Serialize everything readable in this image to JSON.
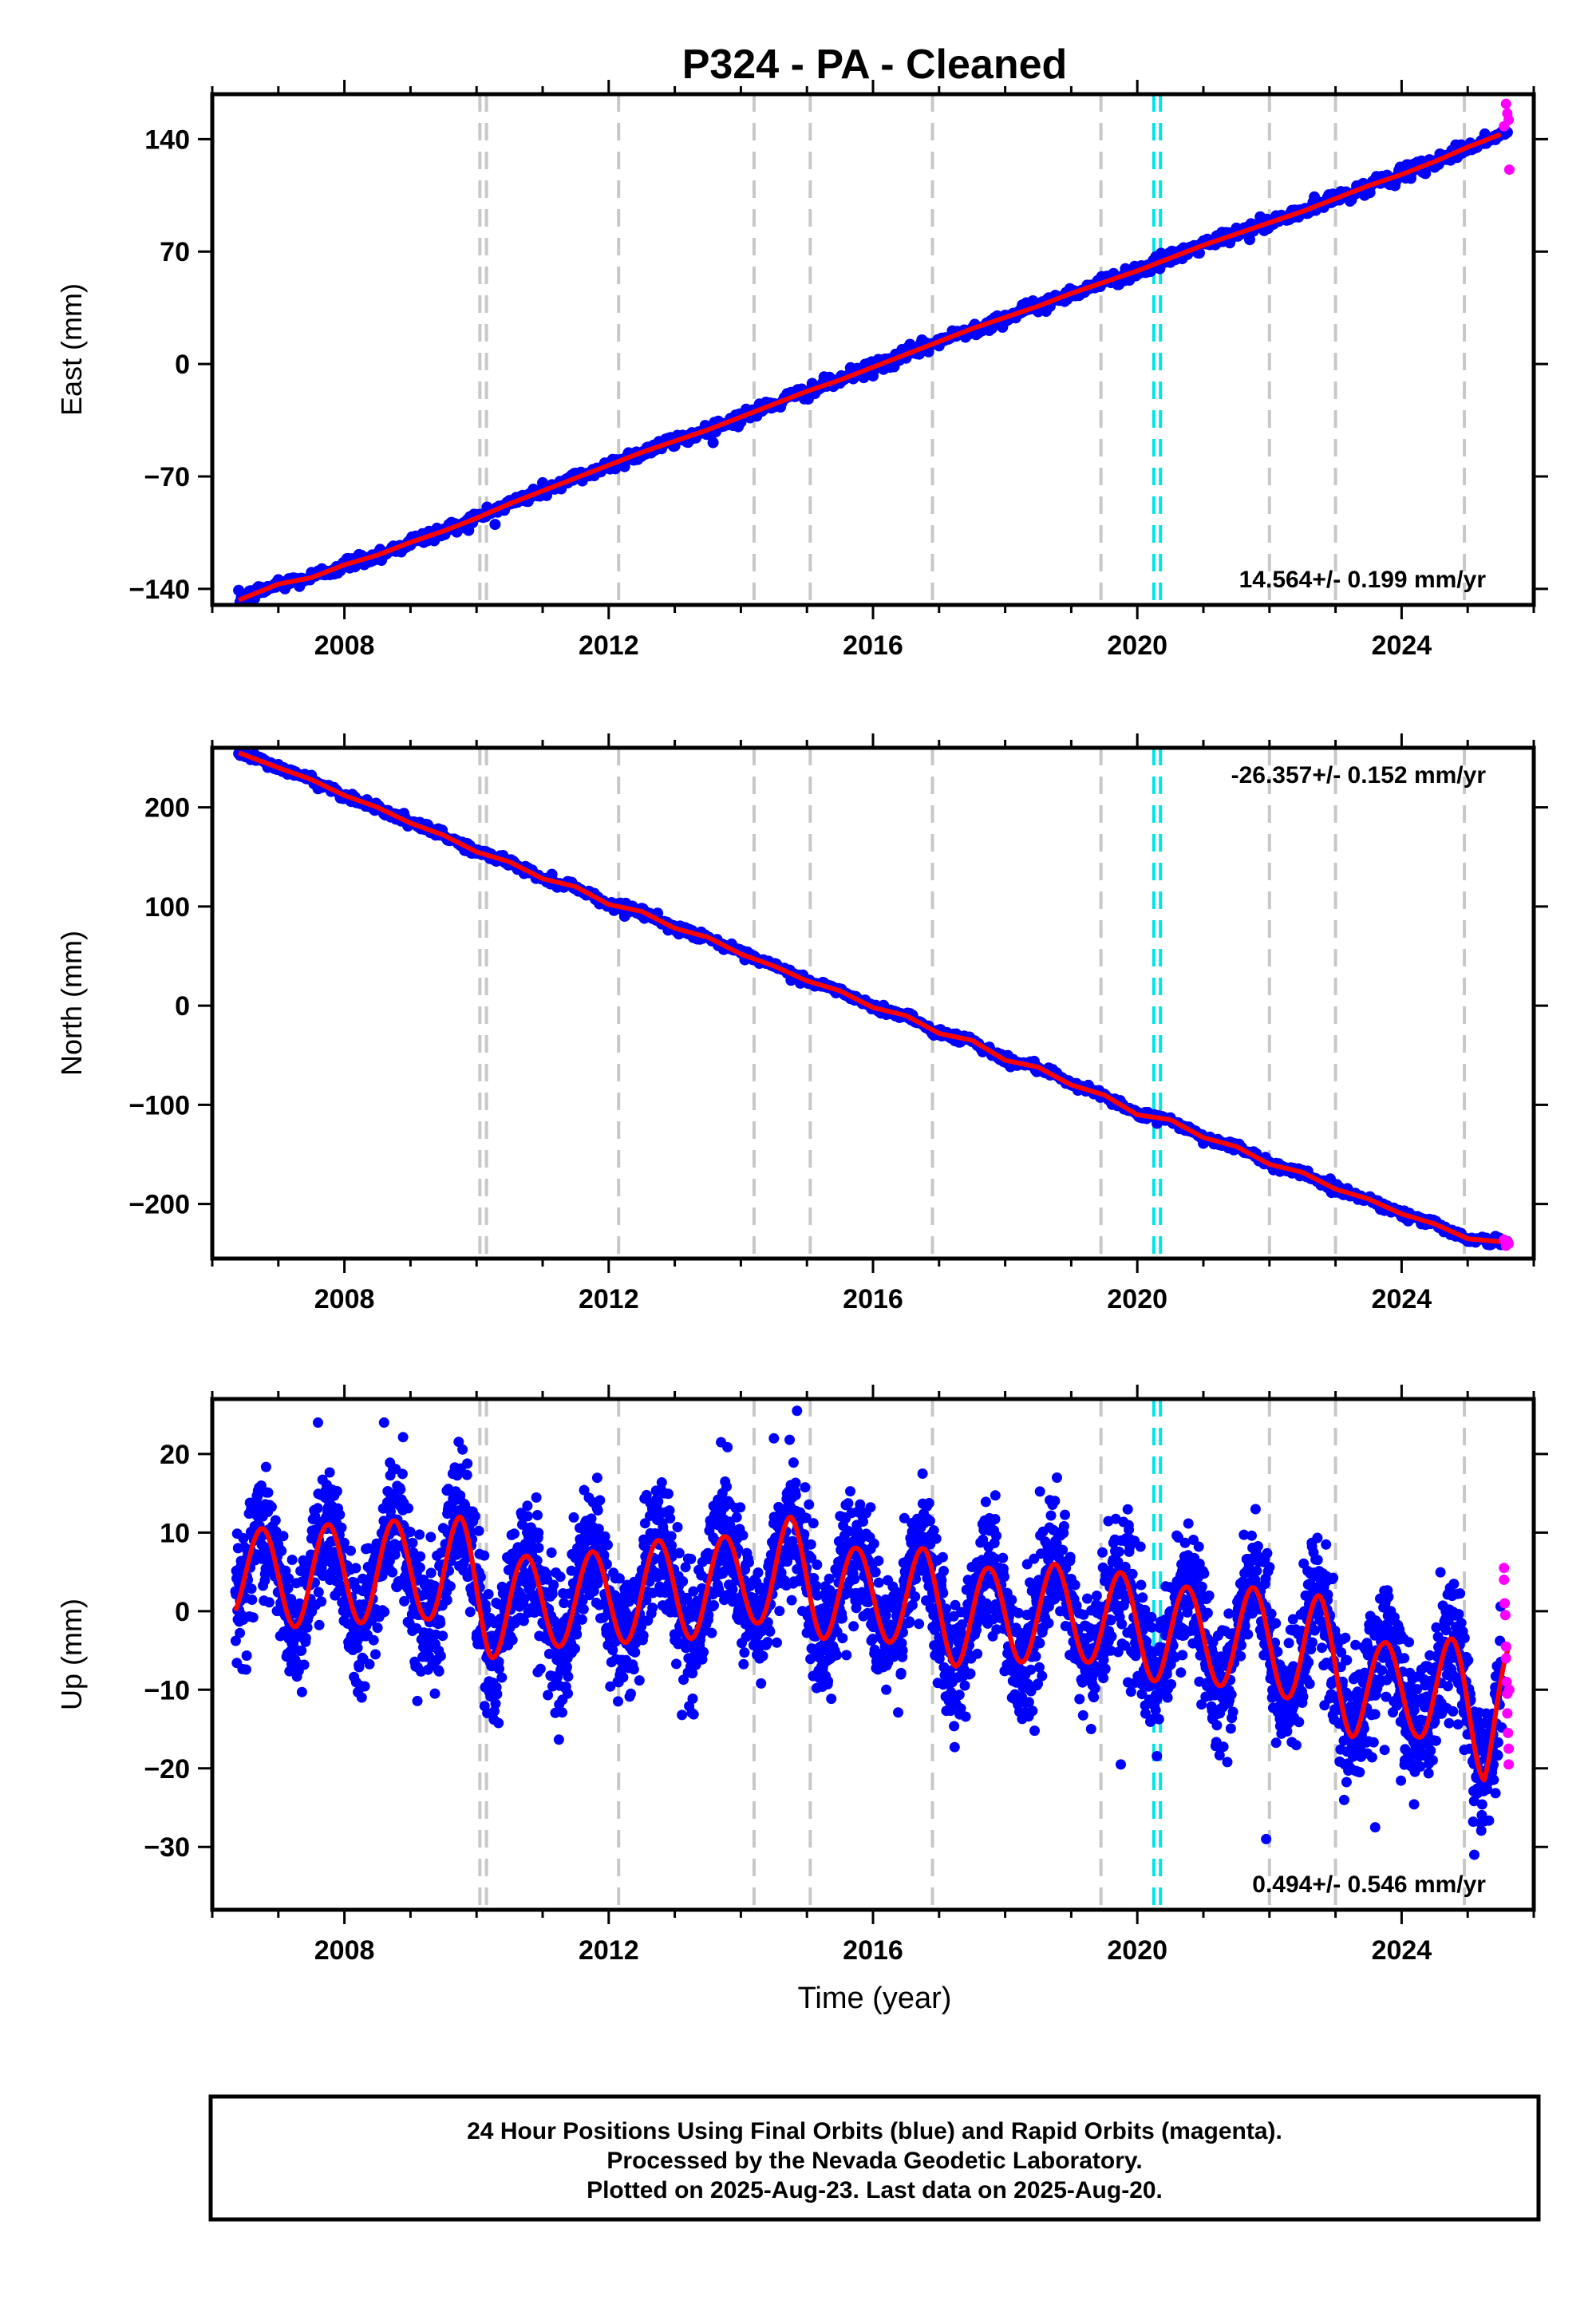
{
  "figure": {
    "title": "P324  - PA - Cleaned",
    "xlabel": "Time (year)",
    "footer": [
      "24 Hour Positions Using Final Orbits (blue) and Rapid Orbits (magenta).",
      "Processed by the Nevada Geodetic Laboratory.",
      "Plotted on 2025-Aug-23. Last data on 2025-Aug-20."
    ]
  },
  "colors": {
    "final": "#0000ff",
    "rapid": "#ff00ff",
    "model": "#ff0000",
    "event_line": "#c8c8c8",
    "antenna_change": "#00e5e5"
  },
  "chart_data": [
    {
      "type": "scatter",
      "ylabel": "East (mm)",
      "rate_label": "14.564+/- 0.199 mm/yr",
      "rate_position": "bottom-right",
      "xlim": [
        2006.0,
        2026.0
      ],
      "ylim": [
        -150,
        168
      ],
      "xticks": [
        2008,
        2012,
        2016,
        2020,
        2024
      ],
      "yticks": [
        -140,
        -70,
        0,
        70,
        140
      ],
      "ytick_labels": [
        "−140",
        "−70",
        "0",
        "70",
        "140"
      ],
      "series": [
        {
          "role": "final-daily",
          "x": [
            2006.4,
            2007.0,
            2007.5,
            2008.0,
            2008.5,
            2009.0,
            2009.5,
            2010.0,
            2010.5,
            2011.0,
            2011.5,
            2012.0,
            2012.5,
            2013.0,
            2013.5,
            2014.0,
            2014.5,
            2015.0,
            2015.5,
            2016.0,
            2016.5,
            2017.0,
            2017.5,
            2018.0,
            2018.5,
            2019.0,
            2019.5,
            2020.0,
            2020.5,
            2021.0,
            2021.5,
            2022.0,
            2022.5,
            2023.0,
            2023.5,
            2024.0,
            2024.5,
            2025.0,
            2025.5
          ],
          "y": [
            -147,
            -137,
            -133,
            -125,
            -119,
            -111,
            -104,
            -96,
            -87,
            -79,
            -71,
            -63,
            -55,
            -48,
            -41,
            -33,
            -25,
            -17,
            -10,
            -2,
            6,
            14,
            22,
            29,
            36,
            44,
            51,
            58,
            66,
            74,
            81,
            88,
            95,
            103,
            111,
            118,
            126,
            135,
            143
          ]
        },
        {
          "role": "rapid-daily",
          "x": [
            2025.55,
            2025.58,
            2025.6,
            2025.62,
            2025.63
          ],
          "y": [
            148,
            162,
            156,
            152,
            121
          ]
        }
      ],
      "events": [
        2010.05,
        2010.15,
        2012.15,
        2014.2,
        2015.05,
        2016.9,
        2019.45,
        2022.0,
        2023.0,
        2024.95
      ],
      "antenna_changes": [
        2020.25,
        2020.35
      ]
    },
    {
      "type": "scatter",
      "ylabel": "North (mm)",
      "rate_label": "-26.357+/- 0.152 mm/yr",
      "rate_position": "top-right",
      "xlim": [
        2006.0,
        2026.0
      ],
      "ylim": [
        -255,
        260
      ],
      "xticks": [
        2008,
        2012,
        2016,
        2020,
        2024
      ],
      "yticks": [
        -200,
        -100,
        0,
        100,
        200
      ],
      "ytick_labels": [
        "−200",
        "−100",
        "0",
        "100",
        "200"
      ],
      "series": [
        {
          "role": "final-daily",
          "x": [
            2006.4,
            2007.0,
            2007.5,
            2008.0,
            2008.5,
            2009.0,
            2009.5,
            2010.0,
            2010.5,
            2011.0,
            2011.5,
            2012.0,
            2012.5,
            2013.0,
            2013.5,
            2014.0,
            2014.5,
            2015.0,
            2015.5,
            2016.0,
            2016.5,
            2017.0,
            2017.5,
            2018.0,
            2018.5,
            2019.0,
            2019.5,
            2020.0,
            2020.5,
            2021.0,
            2021.5,
            2022.0,
            2022.5,
            2023.0,
            2023.5,
            2024.0,
            2024.5,
            2025.0,
            2025.5
          ],
          "y": [
            255,
            240,
            228,
            212,
            200,
            184,
            172,
            155,
            145,
            128,
            120,
            102,
            95,
            78,
            69,
            52,
            40,
            25,
            15,
            -2,
            -10,
            -28,
            -35,
            -55,
            -62,
            -80,
            -90,
            -110,
            -115,
            -133,
            -142,
            -160,
            -168,
            -185,
            -195,
            -210,
            -220,
            -235,
            -238
          ]
        },
        {
          "role": "rapid-daily",
          "x": [
            2025.55,
            2025.58,
            2025.6,
            2025.62
          ],
          "y": [
            -236,
            -242,
            -238,
            -240
          ]
        }
      ],
      "events": [
        2010.05,
        2010.15,
        2012.15,
        2014.2,
        2015.05,
        2016.9,
        2019.45,
        2022.0,
        2023.0,
        2024.95
      ],
      "antenna_changes": [
        2020.25,
        2020.35
      ]
    },
    {
      "type": "scatter",
      "ylabel": "Up (mm)",
      "rate_label": "0.494+/- 0.546 mm/yr",
      "rate_position": "bottom-right",
      "xlim": [
        2006.0,
        2026.0
      ],
      "ylim": [
        -38,
        27
      ],
      "xticks": [
        2008,
        2012,
        2016,
        2020,
        2024
      ],
      "yticks": [
        -30,
        -20,
        -10,
        0,
        10,
        20
      ],
      "ytick_labels": [
        "−30",
        "−20",
        "−10",
        "0",
        "10",
        "20"
      ],
      "seasonal_model": {
        "x_start": 2006.35,
        "x_end": 2025.63,
        "phase_peak": 0.75,
        "amplitude_peaks": [
          [
            2006.7,
            10.5
          ],
          [
            2007.7,
            11.0
          ],
          [
            2008.7,
            11.5
          ],
          [
            2009.75,
            12.0
          ],
          [
            2010.7,
            7.0
          ],
          [
            2011.7,
            7.5
          ],
          [
            2012.7,
            9.0
          ],
          [
            2013.75,
            9.5
          ],
          [
            2014.75,
            12.0
          ],
          [
            2015.75,
            8.0
          ],
          [
            2016.8,
            8.0
          ],
          [
            2017.75,
            5.5
          ],
          [
            2018.75,
            6.0
          ],
          [
            2019.7,
            5.0
          ],
          [
            2020.8,
            3.0
          ],
          [
            2021.75,
            3.0
          ],
          [
            2022.75,
            2.0
          ],
          [
            2023.7,
            -4.0
          ],
          [
            2024.7,
            -3.5
          ]
        ],
        "amplitude_troughs": [
          [
            2006.3,
            -1.0
          ],
          [
            2007.25,
            -2.0
          ],
          [
            2008.25,
            -1.5
          ],
          [
            2009.25,
            -1.0
          ],
          [
            2010.2,
            -6.0
          ],
          [
            2011.25,
            -4.5
          ],
          [
            2012.25,
            -4.0
          ],
          [
            2013.25,
            -3.5
          ],
          [
            2014.25,
            -1.5
          ],
          [
            2015.25,
            -3.5
          ],
          [
            2016.3,
            -4.0
          ],
          [
            2017.25,
            -7.0
          ],
          [
            2018.25,
            -6.5
          ],
          [
            2019.25,
            -6.5
          ],
          [
            2020.3,
            -9.0
          ],
          [
            2021.25,
            -9.5
          ],
          [
            2022.25,
            -11.0
          ],
          [
            2023.25,
            -16.0
          ],
          [
            2024.25,
            -16.0
          ],
          [
            2025.25,
            -21.5
          ],
          [
            2025.63,
            -10.5
          ]
        ],
        "noise_sd": 4.0
      },
      "series": [
        {
          "role": "rapid-daily",
          "x": [
            2025.55,
            2025.55,
            2025.56,
            2025.57,
            2025.58,
            2025.58,
            2025.59,
            2025.6,
            2025.6,
            2025.61,
            2025.62,
            2025.62,
            2025.63
          ],
          "y": [
            5.5,
            4.0,
            1.0,
            -0.5,
            -4.5,
            -6.0,
            -9.0,
            -10.5,
            -13.0,
            -15.5,
            -17.5,
            -19.5,
            -10.0
          ]
        }
      ],
      "outliers": {
        "x": [
          2007.6,
          2008.6,
          2013.7,
          2014.5,
          2014.85,
          2019.75,
          2021.95,
          2023.6,
          2025.1
        ],
        "y": [
          24.0,
          24.0,
          21.5,
          22.0,
          25.5,
          -19.5,
          -29.0,
          -27.5,
          -31.0
        ]
      },
      "events": [
        2010.05,
        2010.15,
        2012.15,
        2014.2,
        2015.05,
        2016.9,
        2019.45,
        2022.0,
        2023.0,
        2024.95
      ],
      "antenna_changes": [
        2020.25,
        2020.35
      ]
    }
  ]
}
